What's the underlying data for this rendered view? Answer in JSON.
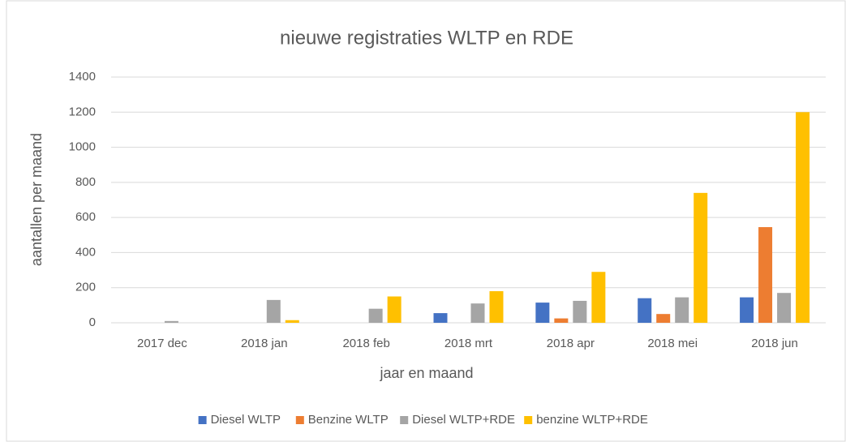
{
  "chart_data": {
    "type": "bar",
    "title": "nieuwe registraties WLTP en RDE",
    "x_label": "jaar en maand",
    "y_label": "aantallen per maand",
    "categories": [
      "2017 dec",
      "2018 jan",
      "2018 feb",
      "2018 mrt",
      "2018 apr",
      "2018 mei",
      "2018 jun"
    ],
    "series": [
      {
        "name": "Diesel WLTP",
        "color": "#4472c4",
        "values": [
          0,
          0,
          0,
          55,
          115,
          140,
          145
        ]
      },
      {
        "name": "Benzine WLTP",
        "color": "#ed7d31",
        "values": [
          0,
          0,
          0,
          0,
          25,
          50,
          545
        ]
      },
      {
        "name": "Diesel WLTP+RDE",
        "color": "#a5a5a5",
        "values": [
          10,
          130,
          80,
          110,
          125,
          145,
          170
        ]
      },
      {
        "name": "benzine WLTP+RDE",
        "color": "#ffc000",
        "values": [
          0,
          15,
          150,
          180,
          290,
          740,
          1200
        ]
      }
    ],
    "ylim": [
      0,
      1400
    ],
    "yticks": [
      0,
      200,
      400,
      600,
      800,
      1000,
      1200,
      1400
    ],
    "grid": true,
    "legend": "bottom"
  }
}
